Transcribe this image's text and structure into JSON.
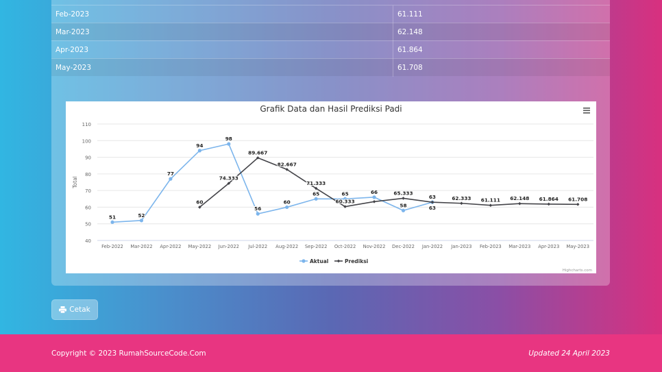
{
  "table": {
    "rows": [
      {
        "period": "Feb-2023",
        "value": "61.111"
      },
      {
        "period": "Mar-2023",
        "value": "62.148"
      },
      {
        "period": "Apr-2023",
        "value": "61.864"
      },
      {
        "period": "May-2023",
        "value": "61.708"
      }
    ]
  },
  "chart_data": {
    "type": "line",
    "title": "Grafik Data dan Hasil Prediksi Padi",
    "ylabel": "Total",
    "xlabel": "",
    "ylim": [
      40,
      110
    ],
    "yticks": [
      40,
      50,
      60,
      70,
      80,
      90,
      100,
      110
    ],
    "grid": true,
    "legend": "bottom",
    "categories": [
      "Feb-2022",
      "Mar-2022",
      "Apr-2022",
      "May-2022",
      "Jun-2022",
      "Jul-2022",
      "Aug-2022",
      "Sep-2022",
      "Oct-2022",
      "Nov-2022",
      "Dec-2022",
      "Jan-2022",
      "Jan-2023",
      "Feb-2023",
      "Mar-2023",
      "Apr-2023",
      "May-2023"
    ],
    "series": [
      {
        "name": "Aktual",
        "color": "#7cb5ec",
        "values": [
          51,
          52,
          77,
          94,
          98,
          56,
          60,
          65,
          65,
          66,
          58,
          63,
          null,
          null,
          null,
          null,
          null
        ]
      },
      {
        "name": "Prediksi",
        "color": "#434348",
        "values": [
          null,
          null,
          null,
          60,
          74.333,
          89.667,
          82.667,
          71.333,
          60.333,
          63.333,
          65.333,
          63,
          62.333,
          61.111,
          62.148,
          61.864,
          61.708
        ]
      }
    ],
    "hidden_labels": [
      [
        1,
        9
      ]
    ],
    "credits": "Highcharts.com"
  },
  "actions": {
    "print_label": "Cetak"
  },
  "footer": {
    "copyright": "Copyright © 2023 RumahSourceCode.Com",
    "updated": "Updated 24 April 2023"
  }
}
